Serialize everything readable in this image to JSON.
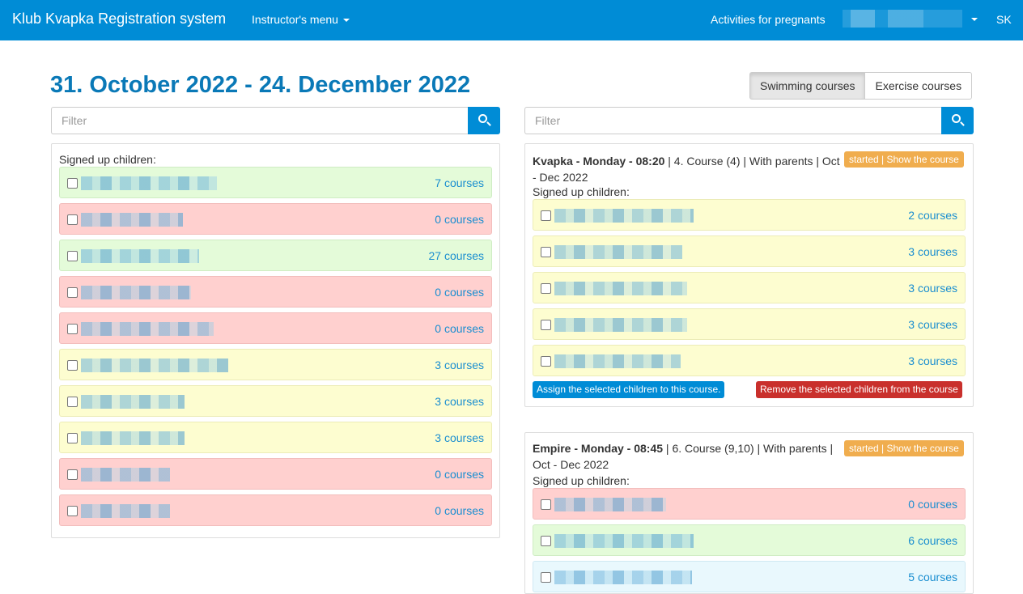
{
  "nav": {
    "brand": "Klub Kvapka Registration system",
    "instructor_menu": "Instructor's menu",
    "activities": "Activities for pregnants",
    "lang": "SK"
  },
  "page_title": "31. October 2022 - 24. December 2022",
  "course_type": {
    "swimming": "Swimming courses",
    "exercise": "Exercise courses",
    "selected": "Swimming courses"
  },
  "filter_placeholder": "Filter",
  "left_panel": {
    "header": "Signed up children:",
    "rows": [
      {
        "status": "green",
        "count": "7 courses",
        "blur": 168
      },
      {
        "status": "red",
        "count": "0 courses",
        "blur": 126
      },
      {
        "status": "green",
        "count": "27 courses",
        "blur": 146
      },
      {
        "status": "red",
        "count": "0 courses",
        "blur": 136
      },
      {
        "status": "red",
        "count": "0 courses",
        "blur": 164
      },
      {
        "status": "yellow",
        "count": "3 courses",
        "blur": 182
      },
      {
        "status": "yellow",
        "count": "3 courses",
        "blur": 128
      },
      {
        "status": "yellow",
        "count": "3 courses",
        "blur": 128
      },
      {
        "status": "red",
        "count": "0 courses",
        "blur": 110
      },
      {
        "status": "red",
        "count": "0 courses",
        "blur": 110
      }
    ]
  },
  "courses": [
    {
      "name": "Kvapka - Monday - 08:20",
      "details_line1": " | 4. Course (4) | With parents | Oct",
      "details_line2": "- Dec 2022",
      "badge": "started | Show the course",
      "signed_label": "Signed up children:",
      "rows": [
        {
          "status": "yellow",
          "count": "2 courses",
          "blur": 172
        },
        {
          "status": "yellow",
          "count": "3 courses",
          "blur": 158
        },
        {
          "status": "yellow",
          "count": "3 courses",
          "blur": 164
        },
        {
          "status": "yellow",
          "count": "3 courses",
          "blur": 164
        },
        {
          "status": "yellow",
          "count": "3 courses",
          "blur": 156
        }
      ],
      "assign_label": "Assign the selected children to this course.",
      "remove_label": "Remove the selected children from the course"
    },
    {
      "name": "Empire - Monday - 08:45",
      "details_line1": " | 6. Course (9,10) | With parents |",
      "details_line2": "Oct - Dec 2022",
      "badge": "started | Show the course",
      "signed_label": "Signed up children:",
      "rows": [
        {
          "status": "red",
          "count": "0 courses",
          "blur": 138
        },
        {
          "status": "green",
          "count": "6 courses",
          "blur": 172
        },
        {
          "status": "blue",
          "count": "5 courses",
          "blur": 170
        }
      ]
    }
  ]
}
